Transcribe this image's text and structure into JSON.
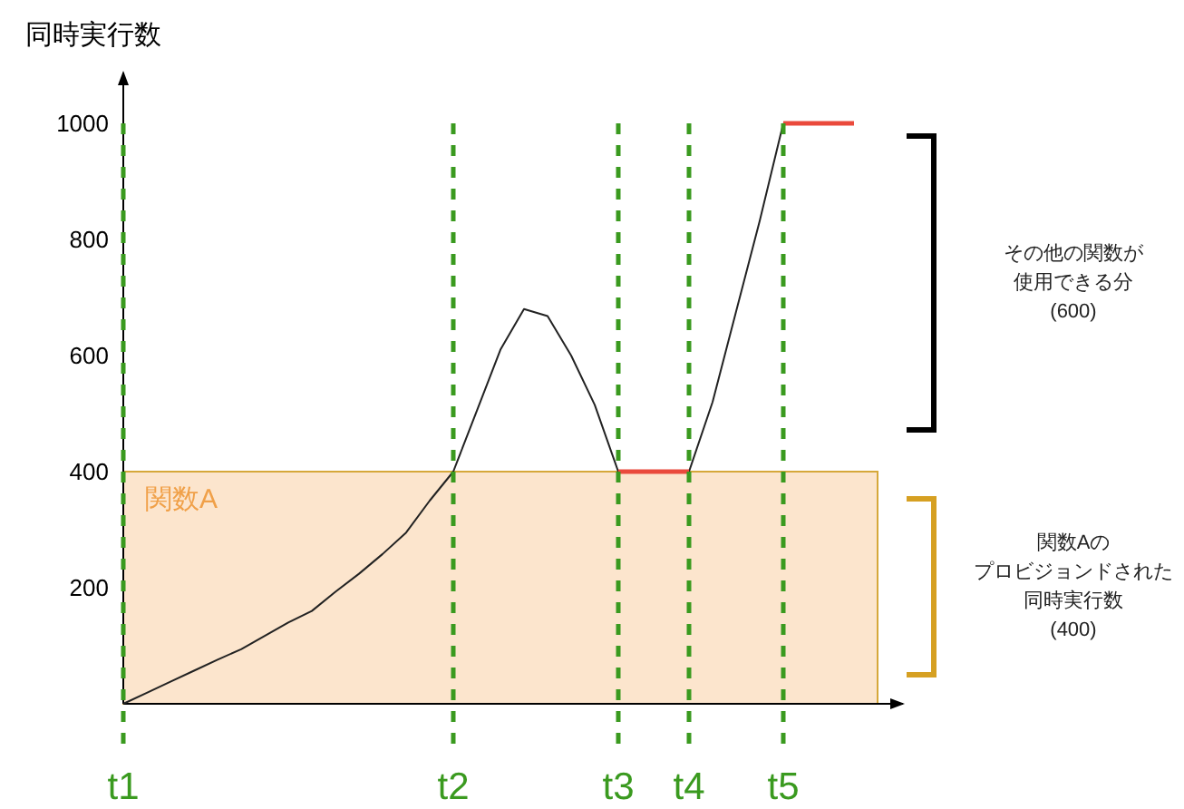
{
  "chart_data": {
    "type": "line",
    "ylabel": "同時実行数",
    "categories": [
      "t1",
      null,
      null,
      null,
      null,
      null,
      null,
      null,
      null,
      null,
      null,
      null,
      null,
      null,
      "t2",
      null,
      null,
      null,
      null,
      null,
      null,
      "t3",
      null,
      null,
      "t4",
      null,
      null,
      null,
      "t5",
      null,
      null,
      null,
      null
    ],
    "ylim": [
      0,
      1000
    ],
    "yticks": [
      200,
      400,
      600,
      800,
      1000
    ],
    "grid": "x",
    "line_style": "solid",
    "series": [
      {
        "color": "#222222",
        "values": [
          0,
          19,
          38,
          57,
          76,
          94,
          117,
          140,
          160,
          193,
          224,
          258,
          295,
          350,
          400,
          505,
          610,
          680,
          668,
          600,
          515,
          400,
          null,
          null,
          400,
          520,
          676,
          832,
          1000,
          null,
          null,
          null,
          null
        ]
      },
      {
        "color": "#ea4a3c",
        "values": [
          null,
          null,
          null,
          null,
          null,
          null,
          null,
          null,
          null,
          null,
          null,
          null,
          null,
          null,
          null,
          null,
          null,
          null,
          null,
          null,
          null,
          400,
          400,
          400,
          400,
          null,
          null,
          null,
          null,
          null,
          null,
          null,
          null
        ]
      },
      {
        "color": "#ea4a3c",
        "values": [
          null,
          null,
          null,
          null,
          null,
          null,
          null,
          null,
          null,
          null,
          null,
          null,
          null,
          null,
          null,
          null,
          null,
          null,
          null,
          null,
          null,
          null,
          null,
          null,
          null,
          null,
          null,
          null,
          1000,
          1000,
          1000,
          1000,
          null
        ]
      }
    ],
    "bands": [
      {
        "axis": "y",
        "from": 0,
        "to": 400,
        "label": "関数A",
        "color": "#fce5cd"
      }
    ],
    "annotations": [
      "その他の関数が",
      "使用できる分",
      "(600)",
      "関数Aの",
      "プロビジョンドされた",
      "同時実行数",
      "(400)"
    ]
  }
}
